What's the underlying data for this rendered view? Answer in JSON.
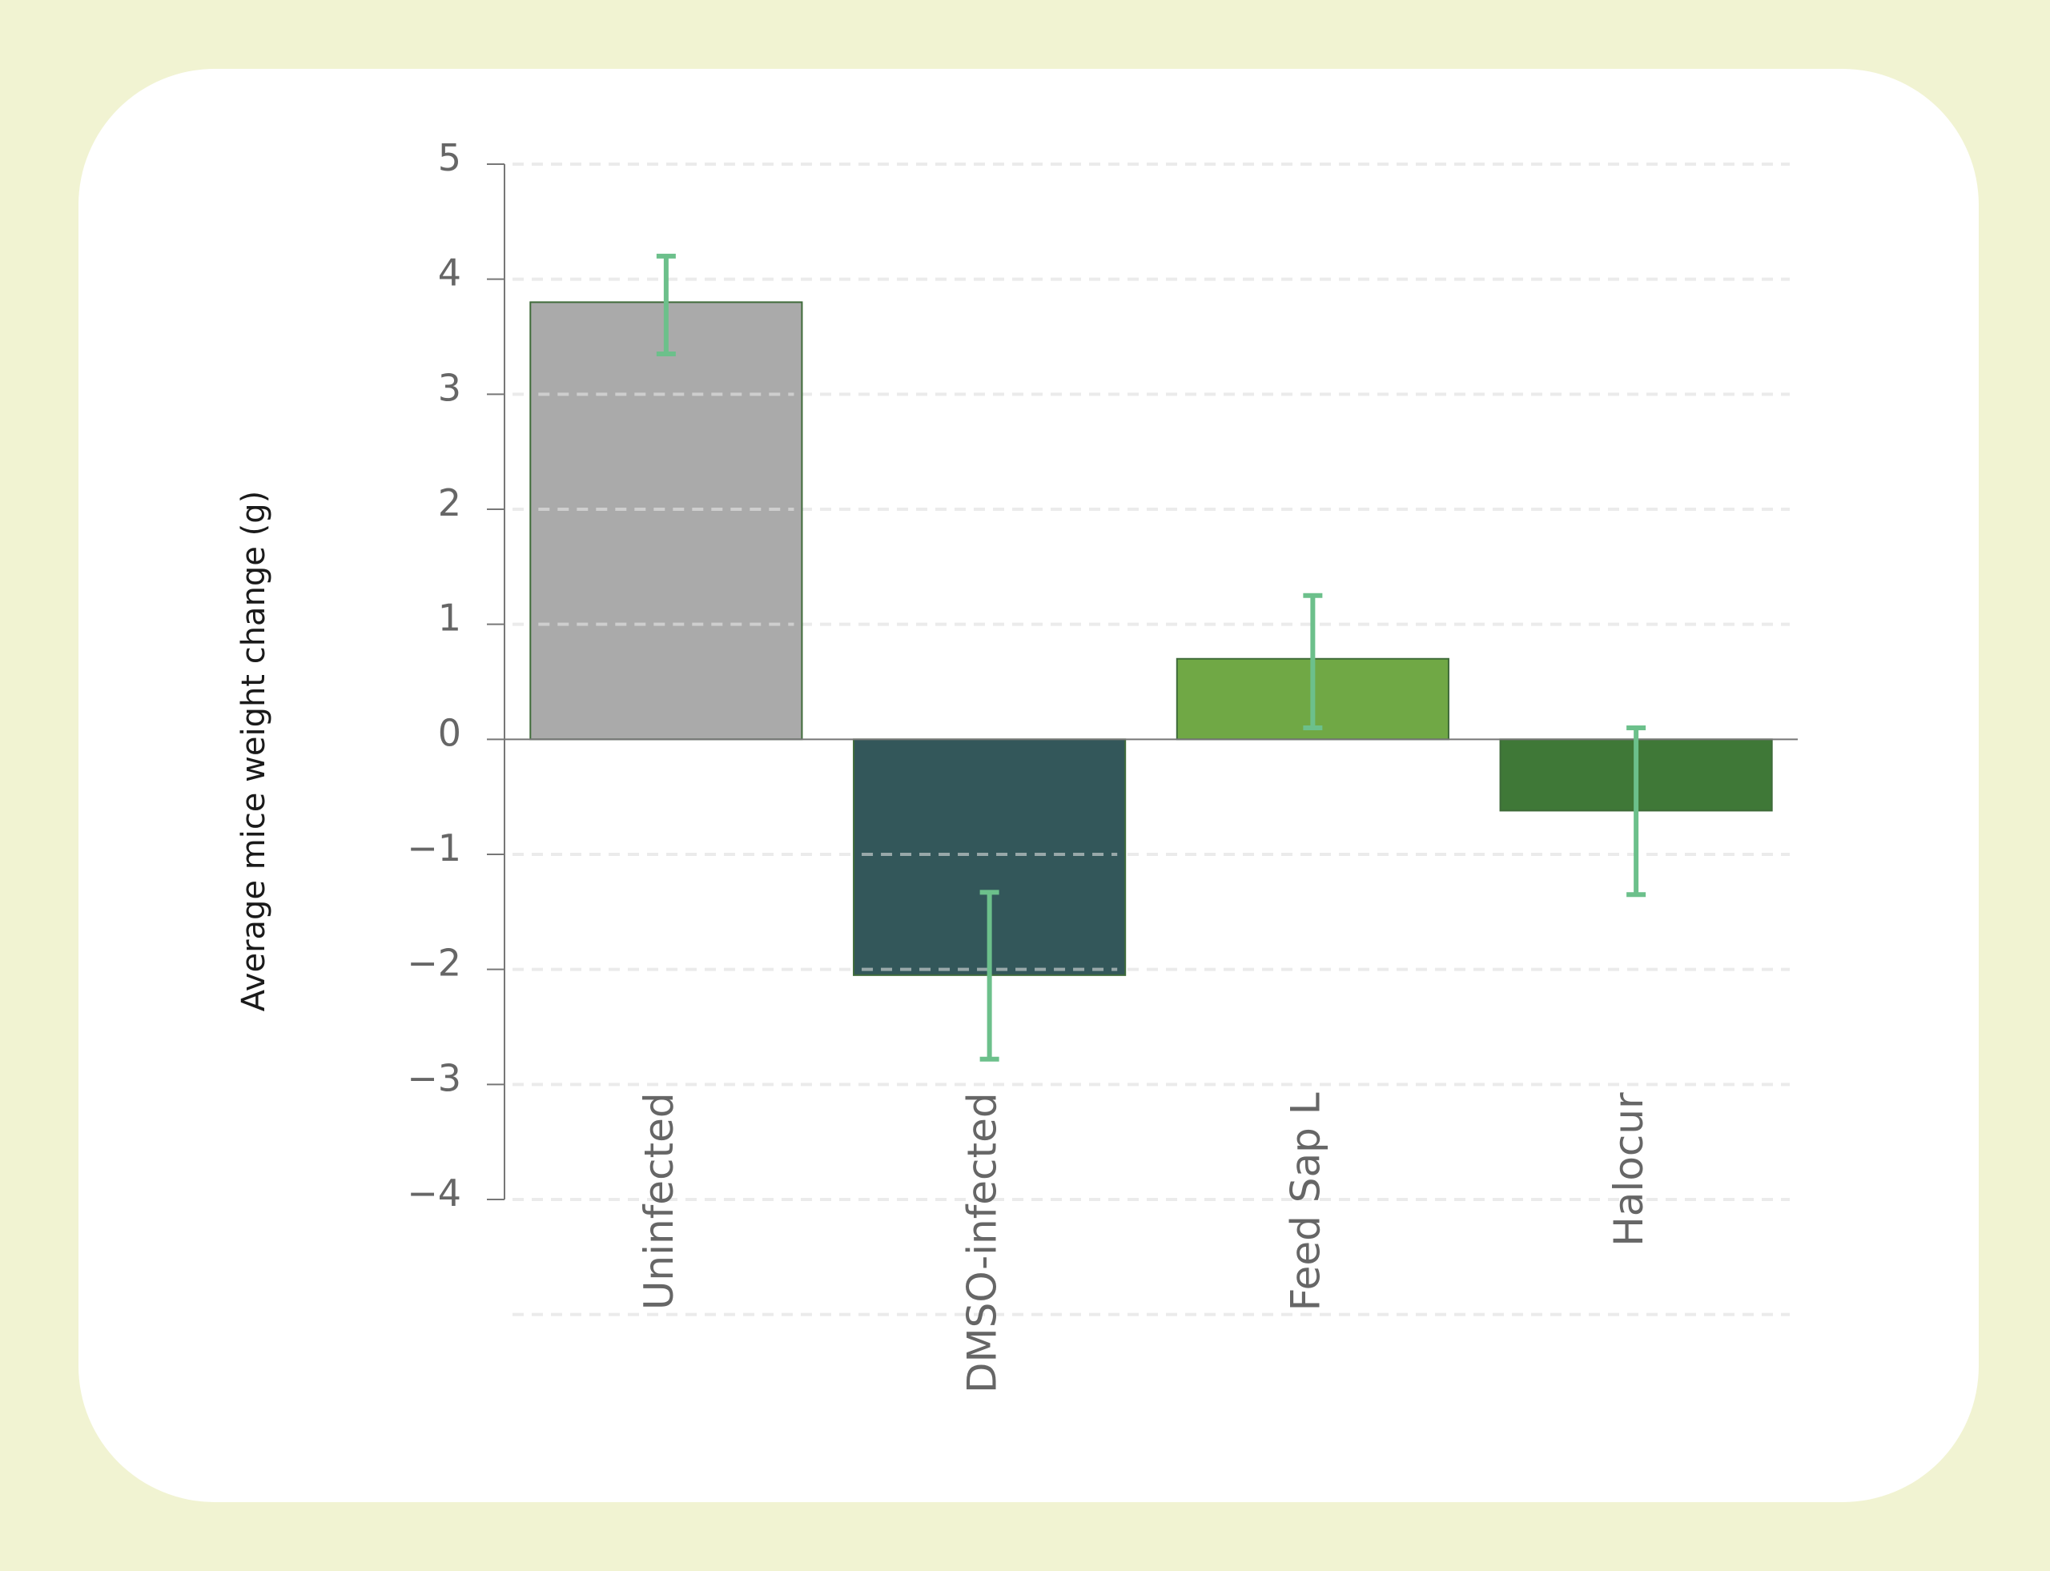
{
  "chart_data": {
    "type": "bar",
    "title": "",
    "xlabel": "",
    "ylabel": "Average mice weight change (g)",
    "ylim": [
      -4,
      5
    ],
    "yticks": [
      5,
      4,
      3,
      2,
      1,
      0,
      -1,
      -2,
      -3,
      -4
    ],
    "grid": true,
    "categories": [
      "Uninfected",
      "DMSO-infected",
      "Feed Sap L",
      "Halocur"
    ],
    "values": [
      3.8,
      -2.05,
      0.7,
      -0.62
    ],
    "error_low": [
      3.35,
      -2.78,
      0.1,
      -1.35
    ],
    "error_high": [
      4.2,
      -1.33,
      1.25,
      0.1
    ],
    "bar_colors": [
      "#aaaaaa",
      "#33575a",
      "#70a845",
      "#3f7837"
    ],
    "error_color": "#6cc08b"
  }
}
